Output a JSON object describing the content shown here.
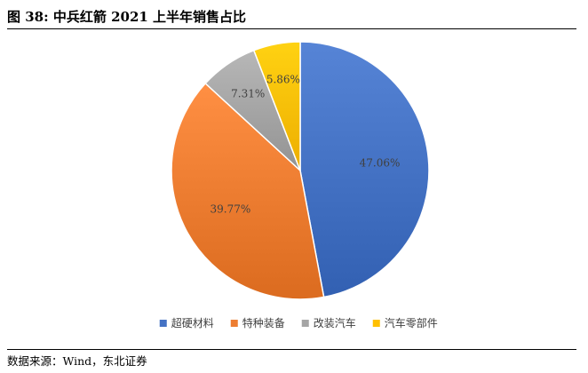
{
  "figure": {
    "title": "图 38:  中兵红箭 2021 上半年销售占比",
    "source": "数据来源：Wind，东北证券"
  },
  "chart_data": {
    "type": "pie",
    "start_angle_deg": 0,
    "direction": "clockwise",
    "slices": [
      {
        "label": "超硬材料",
        "value": 47.06,
        "display": "47.06%",
        "color": "#4472C4"
      },
      {
        "label": "特种装备",
        "value": 39.77,
        "display": "39.77%",
        "color": "#ED7D31"
      },
      {
        "label": "改装汽车",
        "value": 7.31,
        "display": "7.31%",
        "color": "#A5A5A5"
      },
      {
        "label": "汽车零部件",
        "value": 5.86,
        "display": "5.86%",
        "color": "#FFC000"
      }
    ],
    "legend_position": "bottom"
  }
}
